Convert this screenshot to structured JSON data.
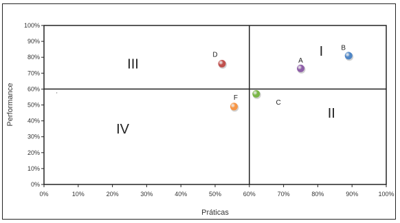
{
  "chart_data": {
    "type": "scatter",
    "xlabel": "Práticas",
    "ylabel": "Performance",
    "xlim": [
      0,
      100
    ],
    "ylim": [
      0,
      100
    ],
    "x_ticks": [
      "0%",
      "10%",
      "20%",
      "30%",
      "40%",
      "50%",
      "60%",
      "70%",
      "80%",
      "90%",
      "100%"
    ],
    "y_ticks": [
      "0%",
      "10%",
      "20%",
      "30%",
      "40%",
      "50%",
      "60%",
      "70%",
      "80%",
      "90%",
      "100%"
    ],
    "grid": false,
    "quadrant_lines": {
      "x": 60,
      "y": 60
    },
    "quadrants": [
      {
        "label": "I",
        "x": 81,
        "y": 84
      },
      {
        "label": "II",
        "x": 84,
        "y": 45
      },
      {
        "label": "III",
        "x": 26,
        "y": 76
      },
      {
        "label": "IV",
        "x": 23,
        "y": 35
      }
    ],
    "points": [
      {
        "label": "A",
        "x": 75,
        "y": 73,
        "color": "#8e5fa8",
        "label_dx": 0,
        "label_dy": 5
      },
      {
        "label": "B",
        "x": 89,
        "y": 81,
        "color": "#4f86c6",
        "label_dx": -1.5,
        "label_dy": 5
      },
      {
        "label": "C",
        "x": 62,
        "y": 57,
        "color": "#7ab648",
        "label_dx": 6.5,
        "label_dy": -5.5
      },
      {
        "label": "D",
        "x": 52,
        "y": 76,
        "color": "#c0504d",
        "label_dx": -2,
        "label_dy": 5.5
      },
      {
        "label": "F",
        "x": 55.5,
        "y": 49,
        "color": "#f79646",
        "label_dx": 0.5,
        "label_dy": 5.5
      }
    ]
  }
}
